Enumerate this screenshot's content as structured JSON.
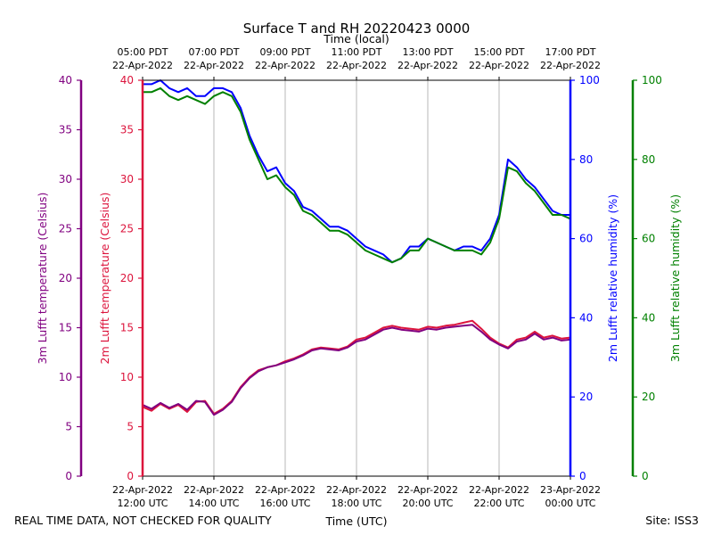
{
  "chart_data": {
    "type": "line",
    "title": "Surface T and RH 20220423 0000",
    "top_axis_label": "Time (local)",
    "xlabel": "Time (UTC)",
    "footer_left": "REAL TIME DATA, NOT CHECKED FOR QUALITY",
    "footer_right": "Site: ISS3",
    "x_range_hours": [
      12,
      24
    ],
    "x_ticks": [
      {
        "h": 12,
        "utc": [
          "22-Apr-2022",
          "12:00 UTC"
        ],
        "local": [
          "05:00 PDT",
          "22-Apr-2022"
        ]
      },
      {
        "h": 14,
        "utc": [
          "22-Apr-2022",
          "14:00 UTC"
        ],
        "local": [
          "07:00 PDT",
          "22-Apr-2022"
        ]
      },
      {
        "h": 16,
        "utc": [
          "22-Apr-2022",
          "16:00 UTC"
        ],
        "local": [
          "09:00 PDT",
          "22-Apr-2022"
        ]
      },
      {
        "h": 18,
        "utc": [
          "22-Apr-2022",
          "18:00 UTC"
        ],
        "local": [
          "11:00 PDT",
          "22-Apr-2022"
        ]
      },
      {
        "h": 20,
        "utc": [
          "22-Apr-2022",
          "20:00 UTC"
        ],
        "local": [
          "13:00 PDT",
          "22-Apr-2022"
        ]
      },
      {
        "h": 22,
        "utc": [
          "22-Apr-2022",
          "22:00 UTC"
        ],
        "local": [
          "15:00 PDT",
          "22-Apr-2022"
        ]
      },
      {
        "h": 24,
        "utc": [
          "23-Apr-2022",
          "00:00 UTC"
        ],
        "local": [
          "17:00 PDT",
          "22-Apr-2022"
        ]
      }
    ],
    "axes": {
      "temp3m": {
        "label": "3m Lufft temperature (Celsius)",
        "color": "#800080",
        "range": [
          0,
          40
        ],
        "ticks": [
          0,
          5,
          10,
          15,
          20,
          25,
          30,
          35,
          40
        ]
      },
      "temp2m": {
        "label": "2m Lufft temperature (Celsius)",
        "color": "#dc143c",
        "range": [
          0,
          40
        ],
        "ticks": [
          0,
          5,
          10,
          15,
          20,
          25,
          30,
          35,
          40
        ]
      },
      "rh2m": {
        "label": "2m Lufft relative humidity (%)",
        "color": "#0000ff",
        "range": [
          0,
          100
        ],
        "ticks": [
          0,
          20,
          40,
          60,
          80,
          100
        ]
      },
      "rh3m": {
        "label": "3m Lufft relative humidity (%)",
        "color": "#008000",
        "range": [
          0,
          100
        ],
        "ticks": [
          0,
          20,
          40,
          60,
          80,
          100
        ]
      }
    },
    "series": [
      {
        "name": "2m Lufft relative humidity",
        "axis": "rh2m",
        "color": "#0000ff",
        "x": [
          12.0,
          12.25,
          12.5,
          12.75,
          13.0,
          13.25,
          13.5,
          13.75,
          14.0,
          14.25,
          14.5,
          14.75,
          15.0,
          15.25,
          15.5,
          15.75,
          16.0,
          16.25,
          16.5,
          16.75,
          17.0,
          17.25,
          17.5,
          17.75,
          18.0,
          18.25,
          18.5,
          18.75,
          19.0,
          19.25,
          19.5,
          19.75,
          20.0,
          20.25,
          20.5,
          20.75,
          21.0,
          21.25,
          21.5,
          21.75,
          22.0,
          22.25,
          22.5,
          22.75,
          23.0,
          23.25,
          23.5,
          23.75,
          24.0
        ],
        "values": [
          99,
          99,
          100,
          98,
          97,
          98,
          96,
          96,
          98,
          98,
          97,
          93,
          86,
          81,
          77,
          78,
          74,
          72,
          68,
          67,
          65,
          63,
          63,
          62,
          60,
          58,
          57,
          56,
          54,
          55,
          58,
          58,
          60,
          59,
          58,
          57,
          58,
          58,
          57,
          60,
          66,
          80,
          78,
          75,
          73,
          70,
          67,
          66,
          66
        ]
      },
      {
        "name": "3m Lufft relative humidity",
        "axis": "rh3m",
        "color": "#008000",
        "x": [
          12.0,
          12.25,
          12.5,
          12.75,
          13.0,
          13.25,
          13.5,
          13.75,
          14.0,
          14.25,
          14.5,
          14.75,
          15.0,
          15.25,
          15.5,
          15.75,
          16.0,
          16.25,
          16.5,
          16.75,
          17.0,
          17.25,
          17.5,
          17.75,
          18.0,
          18.25,
          18.5,
          18.75,
          19.0,
          19.25,
          19.5,
          19.75,
          20.0,
          20.25,
          20.5,
          20.75,
          21.0,
          21.25,
          21.5,
          21.75,
          22.0,
          22.25,
          22.5,
          22.75,
          23.0,
          23.25,
          23.5,
          23.75,
          24.0
        ],
        "values": [
          97,
          97,
          98,
          96,
          95,
          96,
          95,
          94,
          96,
          97,
          96,
          92,
          85,
          80,
          75,
          76,
          73,
          71,
          67,
          66,
          64,
          62,
          62,
          61,
          59,
          57,
          56,
          55,
          54,
          55,
          57,
          57,
          60,
          59,
          58,
          57,
          57,
          57,
          56,
          59,
          65,
          78,
          77,
          74,
          72,
          69,
          66,
          66,
          65
        ]
      },
      {
        "name": "2m Lufft temperature",
        "axis": "temp2m",
        "color": "#dc143c",
        "x": [
          12.0,
          12.25,
          12.5,
          12.75,
          13.0,
          13.25,
          13.5,
          13.75,
          14.0,
          14.25,
          14.5,
          14.75,
          15.0,
          15.25,
          15.5,
          15.75,
          16.0,
          16.25,
          16.5,
          16.75,
          17.0,
          17.25,
          17.5,
          17.75,
          18.0,
          18.25,
          18.5,
          18.75,
          19.0,
          19.25,
          19.5,
          19.75,
          20.0,
          20.25,
          20.5,
          20.75,
          21.0,
          21.25,
          21.5,
          21.75,
          22.0,
          22.25,
          22.5,
          22.75,
          23.0,
          23.25,
          23.5,
          23.75,
          24.0
        ],
        "values": [
          7.0,
          6.6,
          7.3,
          6.8,
          7.2,
          6.5,
          7.5,
          7.6,
          6.3,
          6.8,
          7.6,
          9.0,
          10.0,
          10.7,
          11.0,
          11.2,
          11.6,
          11.9,
          12.3,
          12.8,
          13.0,
          12.9,
          12.8,
          13.1,
          13.8,
          14.0,
          14.5,
          15.0,
          15.2,
          15.0,
          14.9,
          14.8,
          15.1,
          15.0,
          15.2,
          15.3,
          15.5,
          15.7,
          14.9,
          14.0,
          13.4,
          13.0,
          13.8,
          14.0,
          14.6,
          14.0,
          14.2,
          13.9,
          14.0
        ]
      },
      {
        "name": "3m Lufft temperature",
        "axis": "temp3m",
        "color": "#800080",
        "x": [
          12.0,
          12.25,
          12.5,
          12.75,
          13.0,
          13.25,
          13.5,
          13.75,
          14.0,
          14.25,
          14.5,
          14.75,
          15.0,
          15.25,
          15.5,
          15.75,
          16.0,
          16.25,
          16.5,
          16.75,
          17.0,
          17.25,
          17.5,
          17.75,
          18.0,
          18.25,
          18.5,
          18.75,
          19.0,
          19.25,
          19.5,
          19.75,
          20.0,
          20.25,
          20.5,
          20.75,
          21.0,
          21.25,
          21.5,
          21.75,
          22.0,
          22.25,
          22.5,
          22.75,
          23.0,
          23.25,
          23.5,
          23.75,
          24.0
        ],
        "values": [
          7.2,
          6.8,
          7.4,
          6.9,
          7.3,
          6.7,
          7.6,
          7.5,
          6.2,
          6.7,
          7.5,
          8.9,
          9.9,
          10.6,
          11.0,
          11.2,
          11.5,
          11.8,
          12.2,
          12.7,
          12.9,
          12.8,
          12.7,
          13.0,
          13.6,
          13.8,
          14.3,
          14.8,
          15.0,
          14.8,
          14.7,
          14.6,
          14.9,
          14.8,
          15.0,
          15.1,
          15.2,
          15.3,
          14.6,
          13.8,
          13.3,
          12.9,
          13.6,
          13.8,
          14.4,
          13.8,
          14.0,
          13.7,
          13.8
        ]
      }
    ]
  }
}
